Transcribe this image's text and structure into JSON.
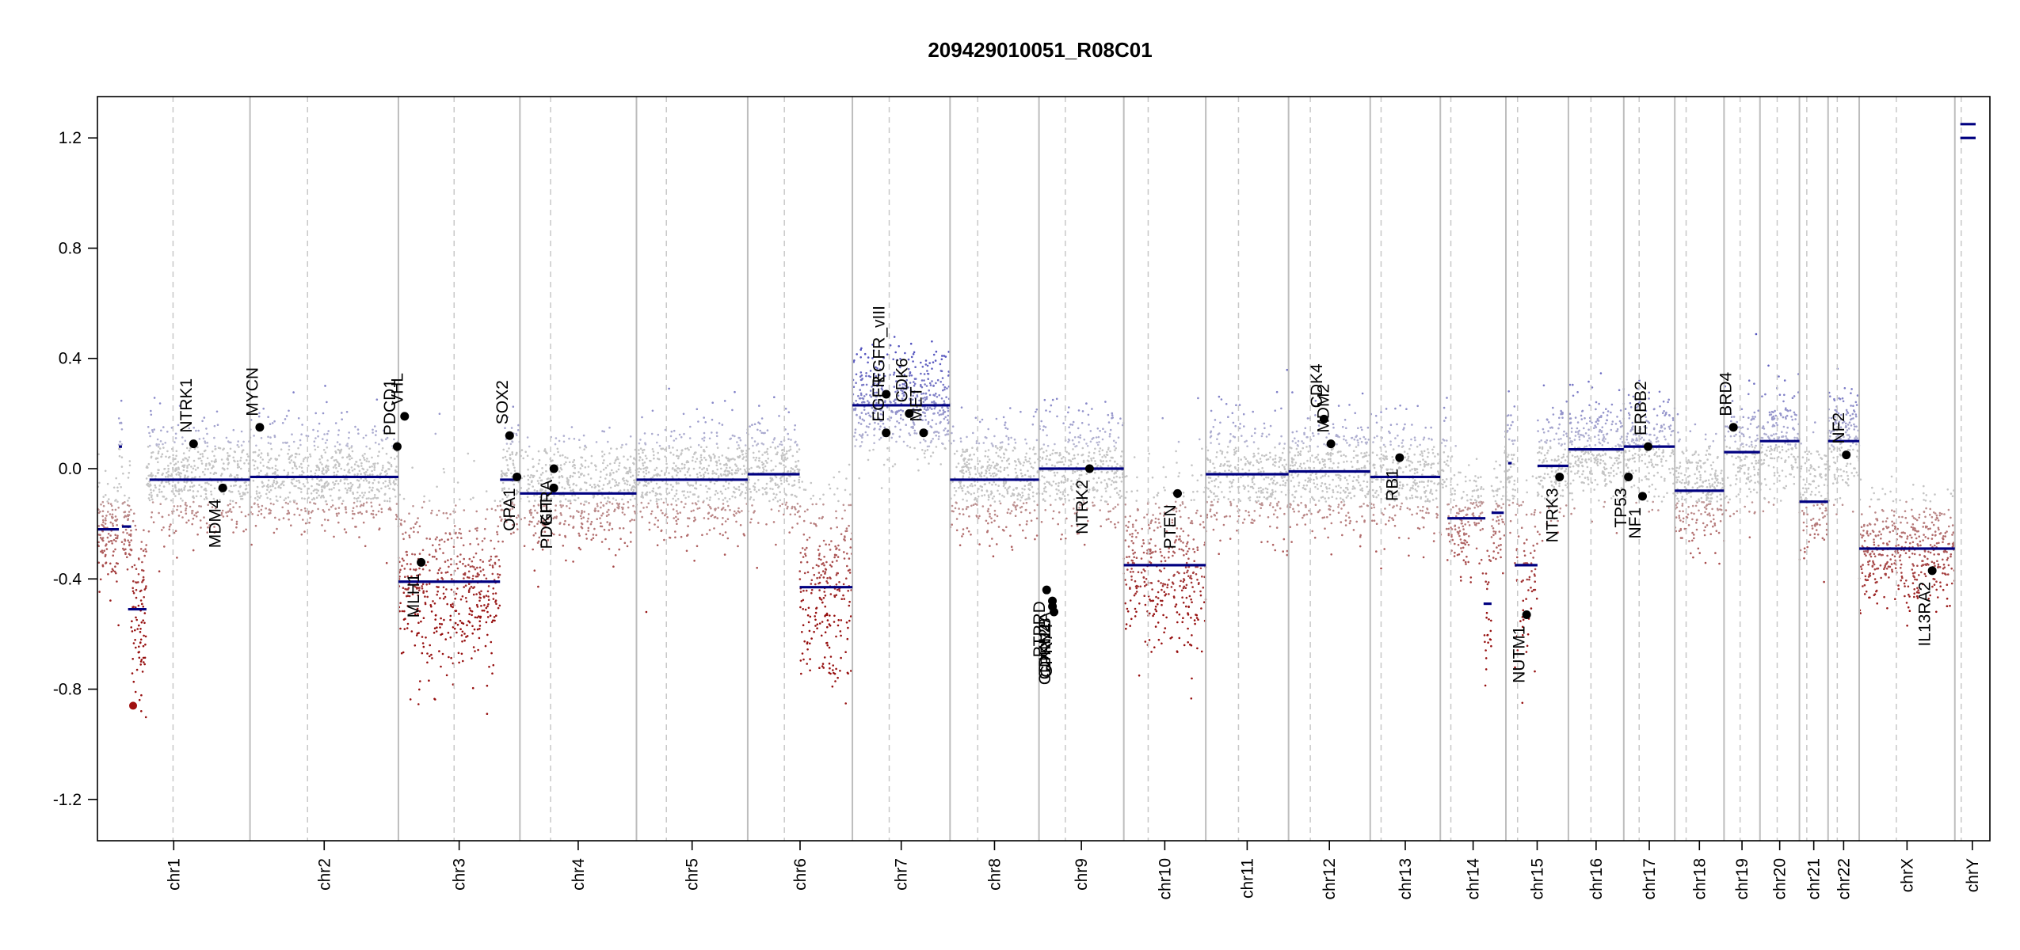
{
  "chart_data": {
    "type": "scatter",
    "title": "209429010051_R08C01",
    "xlabel": "",
    "ylabel": "",
    "ylim": [
      -1.35,
      1.35
    ],
    "yticks": [
      -1.2,
      -0.8,
      -0.4,
      0.0,
      0.4,
      0.8,
      1.2
    ],
    "ytick_labels": [
      "-1.2",
      "-0.8",
      "-0.4",
      "0.0",
      "0.4",
      "0.8",
      "1.2"
    ],
    "colors": {
      "gain": "#4a4ab0",
      "loss": "#a01010",
      "neutral": "#b8b8b8",
      "segment": "#000080",
      "gene": "#000000",
      "boundary": "#bdbdbd"
    },
    "chromosomes": [
      {
        "name": "chr1",
        "start": 0.0,
        "end": 248.96,
        "centromere": 123.4
      },
      {
        "name": "chr2",
        "start": 248.96,
        "end": 491.15,
        "centromere": 93.9
      },
      {
        "name": "chr3",
        "start": 491.15,
        "end": 689.44,
        "centromere": 90.9
      },
      {
        "name": "chr4",
        "start": 689.44,
        "end": 879.65,
        "centromere": 50.0
      },
      {
        "name": "chr5",
        "start": 879.65,
        "end": 1061.19,
        "centromere": 48.8
      },
      {
        "name": "chr6",
        "start": 1061.19,
        "end": 1232.0,
        "centromere": 59.8
      },
      {
        "name": "chr7",
        "start": 1232.0,
        "end": 1391.35,
        "centromere": 60.1
      },
      {
        "name": "chr8",
        "start": 1391.35,
        "end": 1536.49,
        "centromere": 45.2
      },
      {
        "name": "chr9",
        "start": 1536.49,
        "end": 1674.88,
        "centromere": 43.0
      },
      {
        "name": "chr10",
        "start": 1674.88,
        "end": 1808.68,
        "centromere": 39.8
      },
      {
        "name": "chr11",
        "start": 1808.68,
        "end": 1943.77,
        "centromere": 53.4
      },
      {
        "name": "chr12",
        "start": 1943.77,
        "end": 2077.05,
        "centromere": 35.5
      },
      {
        "name": "chr13",
        "start": 2077.05,
        "end": 2191.42,
        "centromere": 17.7
      },
      {
        "name": "chr14",
        "start": 2191.42,
        "end": 2298.46,
        "centromere": 17.2
      },
      {
        "name": "chr15",
        "start": 2298.46,
        "end": 2400.45,
        "centromere": 19.0
      },
      {
        "name": "chr16",
        "start": 2400.45,
        "end": 2490.79,
        "centromere": 36.8
      },
      {
        "name": "chr17",
        "start": 2490.79,
        "end": 2574.05,
        "centromere": 25.1
      },
      {
        "name": "chr18",
        "start": 2574.05,
        "end": 2654.42,
        "centromere": 18.5
      },
      {
        "name": "chr19",
        "start": 2654.42,
        "end": 2713.04,
        "centromere": 26.2
      },
      {
        "name": "chr20",
        "start": 2713.04,
        "end": 2777.48,
        "centromere": 28.1
      },
      {
        "name": "chr21",
        "start": 2777.48,
        "end": 2824.19,
        "centromere": 12.0
      },
      {
        "name": "chr22",
        "start": 2824.19,
        "end": 2875.01,
        "centromere": 15.0
      },
      {
        "name": "chrX",
        "start": 2875.01,
        "end": 3031.05,
        "centromere": 60.6
      },
      {
        "name": "chrY",
        "start": 3031.05,
        "end": 3088.27,
        "centromere": 10.4
      }
    ],
    "segments": [
      {
        "chr": "chr1",
        "x": [
          0,
          35
        ],
        "y": -0.22
      },
      {
        "chr": "chr1",
        "x": [
          40,
          55
        ],
        "y": -0.21
      },
      {
        "chr": "chr1",
        "x": [
          35,
          40
        ],
        "y": 0.08
      },
      {
        "chr": "chr1",
        "x": [
          50,
          80
        ],
        "y": -0.51
      },
      {
        "chr": "chr1",
        "x": [
          85,
          248.96
        ],
        "y": -0.04
      },
      {
        "chr": "chr2",
        "x": [
          248.96,
          491.15
        ],
        "y": -0.03
      },
      {
        "chr": "chr3",
        "x": [
          491.15,
          657
        ],
        "y": -0.41
      },
      {
        "chr": "chr3",
        "x": [
          657,
          689.44
        ],
        "y": -0.04
      },
      {
        "chr": "chr4",
        "x": [
          689.44,
          879.65
        ],
        "y": -0.09
      },
      {
        "chr": "chr5",
        "x": [
          879.65,
          1061.19
        ],
        "y": -0.04
      },
      {
        "chr": "chr6",
        "x": [
          1061.19,
          1146
        ],
        "y": -0.02
      },
      {
        "chr": "chr6",
        "x": [
          1146,
          1232.0
        ],
        "y": -0.43
      },
      {
        "chr": "chr7",
        "x": [
          1232.0,
          1391.35
        ],
        "y": 0.23
      },
      {
        "chr": "chr8",
        "x": [
          1391.35,
          1536.49
        ],
        "y": -0.04
      },
      {
        "chr": "chr9",
        "x": [
          1536.49,
          1674.88
        ],
        "y": 0.0
      },
      {
        "chr": "chr10",
        "x": [
          1674.88,
          1808.68
        ],
        "y": -0.35
      },
      {
        "chr": "chr11",
        "x": [
          1808.68,
          1943.77
        ],
        "y": -0.02
      },
      {
        "chr": "chr12",
        "x": [
          1943.77,
          2077.05
        ],
        "y": -0.01
      },
      {
        "chr": "chr13",
        "x": [
          2077.05,
          2191.42
        ],
        "y": -0.03
      },
      {
        "chr": "chr14",
        "x": [
          2203,
          2265
        ],
        "y": -0.18
      },
      {
        "chr": "chr14",
        "x": [
          2275,
          2295
        ],
        "y": -0.16
      },
      {
        "chr": "chr14",
        "x": [
          2262,
          2275
        ],
        "y": -0.49
      },
      {
        "chr": "chr15",
        "x": [
          2302,
          2308
        ],
        "y": 0.02
      },
      {
        "chr": "chr15",
        "x": [
          2313,
          2350
        ],
        "y": -0.35
      },
      {
        "chr": "chr15",
        "x": [
          2350,
          2400.45
        ],
        "y": 0.01
      },
      {
        "chr": "chr16",
        "x": [
          2400.45,
          2490.79
        ],
        "y": 0.07
      },
      {
        "chr": "chr17",
        "x": [
          2490.79,
          2574.05
        ],
        "y": 0.08
      },
      {
        "chr": "chr18",
        "x": [
          2574.05,
          2654.42
        ],
        "y": -0.08
      },
      {
        "chr": "chr19",
        "x": [
          2654.42,
          2713.04
        ],
        "y": 0.06
      },
      {
        "chr": "chr20",
        "x": [
          2713.04,
          2777.48
        ],
        "y": 0.1
      },
      {
        "chr": "chr21",
        "x": [
          2777.48,
          2824.19
        ],
        "y": -0.12
      },
      {
        "chr": "chr22",
        "x": [
          2824.19,
          2875.01
        ],
        "y": 0.1
      },
      {
        "chr": "chrX",
        "x": [
          2875.01,
          3031.05
        ],
        "y": -0.29
      },
      {
        "chr": "chrY",
        "x": [
          3040,
          3065
        ],
        "y": 1.25
      },
      {
        "chr": "chrY",
        "x": [
          3040,
          3065
        ],
        "y": 1.2
      }
    ],
    "genes": [
      {
        "name": "NTRK1",
        "x": 156.8,
        "y": 0.09
      },
      {
        "name": "MDM4",
        "x": 204.5,
        "y": -0.07
      },
      {
        "name": "MYCN",
        "x": 264.9,
        "y": 0.15
      },
      {
        "name": "PDCD1",
        "x": 489.2,
        "y": 0.08
      },
      {
        "name": "VHL",
        "x": 501.3,
        "y": 0.19
      },
      {
        "name": "MLH1",
        "x": 528.2,
        "y": -0.34
      },
      {
        "name": "SOX2",
        "x": 672.6,
        "y": 0.12
      },
      {
        "name": "OPA1",
        "x": 684.6,
        "y": -0.03
      },
      {
        "name": "KIT",
        "x": 744.7,
        "y": -0.07
      },
      {
        "name": "PDGFRA",
        "x": 744.9,
        "y": 0.0
      },
      {
        "name": "EGFR",
        "x": 1287.1,
        "y": 0.13
      },
      {
        "name": "EGFR_vIII",
        "x": 1287.2,
        "y": 0.27
      },
      {
        "name": "CDK6",
        "x": 1324.7,
        "y": 0.2
      },
      {
        "name": "MET",
        "x": 1348.2,
        "y": 0.13
      },
      {
        "name": "CDKN2A",
        "x": 1558.4,
        "y": -0.48
      },
      {
        "name": "CDKN2B",
        "x": 1558.5,
        "y": -0.5
      },
      {
        "name": "GPR74",
        "x": 1561.0,
        "y": -0.52
      },
      {
        "name": "PTPRD",
        "x": 1549.0,
        "y": -0.44
      },
      {
        "name": "NTRK2",
        "x": 1619.0,
        "y": 0.0
      },
      {
        "name": "PTEN",
        "x": 1762.6,
        "y": -0.09
      },
      {
        "name": "CDK4",
        "x": 2001.6,
        "y": 0.18
      },
      {
        "name": "MDM2",
        "x": 2012.9,
        "y": 0.09
      },
      {
        "name": "RB1",
        "x": 2125.0,
        "y": 0.04
      },
      {
        "name": "NUTM1",
        "x": 2332.2,
        "y": -0.53
      },
      {
        "name": "NTRK3",
        "x": 2386.0,
        "y": -0.03
      },
      {
        "name": "TP53",
        "x": 2498.4,
        "y": -0.03
      },
      {
        "name": "NF1",
        "x": 2521.4,
        "y": -0.1
      },
      {
        "name": "ERBB2",
        "x": 2530.5,
        "y": 0.08
      },
      {
        "name": "BRD4",
        "x": 2669.7,
        "y": 0.15
      },
      {
        "name": "NF2",
        "x": 2853.9,
        "y": 0.05
      },
      {
        "name": "IL13RA2",
        "x": 2994.1,
        "y": -0.37
      }
    ],
    "dots": [
      {
        "x": 58.2,
        "y": -0.86,
        "color": "#a01010"
      }
    ]
  }
}
